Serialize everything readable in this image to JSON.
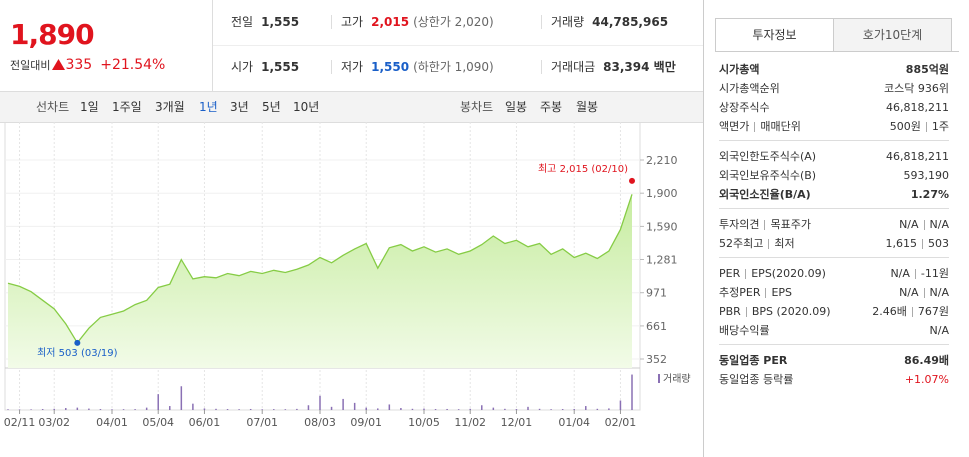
{
  "quote": {
    "price": "1,890",
    "change_label": "전일대비",
    "change": "335",
    "change_pct": "+21.54%"
  },
  "summary": [
    [
      {
        "label": "전일",
        "value": "1,555"
      },
      {
        "label": "고가",
        "value": "2,015",
        "note": "(상한가 2,020)",
        "color": "#e0141e"
      },
      {
        "label": "거래량",
        "value": "44,785,965"
      }
    ],
    [
      {
        "label": "시가",
        "value": "1,555"
      },
      {
        "label": "저가",
        "value": "1,550",
        "note": "(하한가 1,090)",
        "color": "#1a5fc8"
      },
      {
        "label": "거래대금",
        "value": "83,394 백만"
      }
    ]
  ],
  "toolbar": {
    "line_label": "선차트",
    "periods": [
      "1일",
      "1주일",
      "3개월",
      "1년",
      "3년",
      "5년",
      "10년"
    ],
    "active_period": 3,
    "candle_label": "봉차트",
    "candles": [
      "일봉",
      "주봉",
      "월봉"
    ]
  },
  "chart_data": {
    "type": "line",
    "categories": [
      null,
      "02/11",
      null,
      null,
      "03/02",
      null,
      null,
      null,
      null,
      "04/01",
      null,
      null,
      null,
      "05/04",
      null,
      null,
      null,
      "06/01",
      null,
      null,
      null,
      null,
      "07/01",
      null,
      null,
      null,
      null,
      "08/03",
      null,
      null,
      null,
      "09/01",
      null,
      null,
      null,
      null,
      "10/05",
      null,
      null,
      null,
      "11/02",
      null,
      null,
      null,
      "12/01",
      null,
      null,
      null,
      null,
      "01/04",
      null,
      null,
      null,
      "02/01",
      null
    ],
    "series": [
      {
        "color": "#86cc45",
        "values": [
          1060,
          1030,
          980,
          900,
          820,
          680,
          503,
          640,
          740,
          770,
          800,
          860,
          900,
          1020,
          1050,
          1280,
          1100,
          1120,
          1110,
          1150,
          1130,
          1170,
          1150,
          1180,
          1160,
          1190,
          1230,
          1300,
          1250,
          1320,
          1380,
          1430,
          1200,
          1390,
          1420,
          1360,
          1400,
          1350,
          1380,
          1330,
          1360,
          1420,
          1500,
          1430,
          1460,
          1400,
          1430,
          1330,
          1380,
          1300,
          1340,
          1290,
          1360,
          1560,
          1890
        ]
      },
      {
        "name": "거래량",
        "type": "bar",
        "axis": "y2",
        "color": "#8a70b4",
        "values": [
          900000,
          700000,
          800000,
          1200000,
          1500000,
          2500000,
          3000000,
          1800000,
          1200000,
          900000,
          1000000,
          1100000,
          3000000,
          20000000,
          5000000,
          30000000,
          8000000,
          2000000,
          1500000,
          1200000,
          1000000,
          1300000,
          900000,
          1100000,
          1000000,
          1400000,
          6000000,
          18000000,
          4000000,
          14000000,
          9000000,
          3000000,
          2000000,
          7000000,
          2500000,
          1500000,
          1800000,
          1200000,
          1300000,
          1000000,
          1500000,
          6000000,
          3000000,
          1500000,
          1200000,
          4000000,
          1500000,
          1000000,
          1200000,
          1300000,
          5000000,
          1500000,
          2000000,
          12000000,
          44785965
        ]
      }
    ],
    "ylim": [
      268,
      2322
    ],
    "yticks": [
      {
        "value": 2210,
        "label": "2,210"
      },
      {
        "value": 1900,
        "label": "1,900"
      },
      {
        "value": 1590,
        "label": "1,590"
      },
      {
        "value": 1281,
        "label": "1,281"
      },
      971,
      661,
      352
    ],
    "y2lim": [
      0,
      48000000
    ],
    "grid": true,
    "annotations": [
      {
        "text": "최고 2,015 (02/10)",
        "value": 2015,
        "color": "#e0141e"
      },
      {
        "text": "최저 503 (03/19)",
        "value": 503,
        "color": "#1a5fc8"
      }
    ]
  },
  "side": {
    "tabs": [
      "투자정보",
      "호가10단계"
    ],
    "groups": [
      [
        {
          "label": [
            "시가총액"
          ],
          "value": [
            "885억원"
          ],
          "strong": true
        },
        {
          "label": [
            "시가총액순위"
          ],
          "value": [
            "코스닥 936위"
          ]
        },
        {
          "label": [
            "상장주식수"
          ],
          "value": [
            "46,818,211"
          ]
        },
        {
          "label": [
            "액면가",
            "매매단위"
          ],
          "value": [
            "500원",
            "1주"
          ]
        }
      ],
      [
        {
          "label": [
            "외국인한도주식수(A)"
          ],
          "value": [
            "46,818,211"
          ]
        },
        {
          "label": [
            "외국인보유주식수(B)"
          ],
          "value": [
            "593,190"
          ]
        },
        {
          "label": [
            "외국인소진율(B/A)"
          ],
          "value": [
            "1.27%"
          ],
          "strong": true
        }
      ],
      [
        {
          "label": [
            "투자의견",
            "목표주가"
          ],
          "value": [
            "N/A",
            "N/A"
          ]
        },
        {
          "label": [
            "52주최고",
            "최저"
          ],
          "value": [
            "1,615",
            "503"
          ]
        }
      ],
      [
        {
          "label": [
            "PER",
            "EPS(2020.09)"
          ],
          "value": [
            "N/A",
            "-11원"
          ]
        },
        {
          "label": [
            "추정PER",
            "EPS"
          ],
          "value": [
            "N/A",
            "N/A"
          ]
        },
        {
          "label": [
            "PBR",
            "BPS (2020.09)"
          ],
          "value": [
            "2.46배",
            "767원"
          ]
        },
        {
          "label": [
            "배당수익률"
          ],
          "value": [
            "N/A"
          ]
        }
      ],
      [
        {
          "label": [
            "동일업종 PER"
          ],
          "value": [
            "86.49배"
          ],
          "strong": true
        },
        {
          "label": [
            "동일업종 등락률"
          ],
          "value": [
            "+1.07%"
          ],
          "color": "#e0141e"
        }
      ]
    ]
  }
}
